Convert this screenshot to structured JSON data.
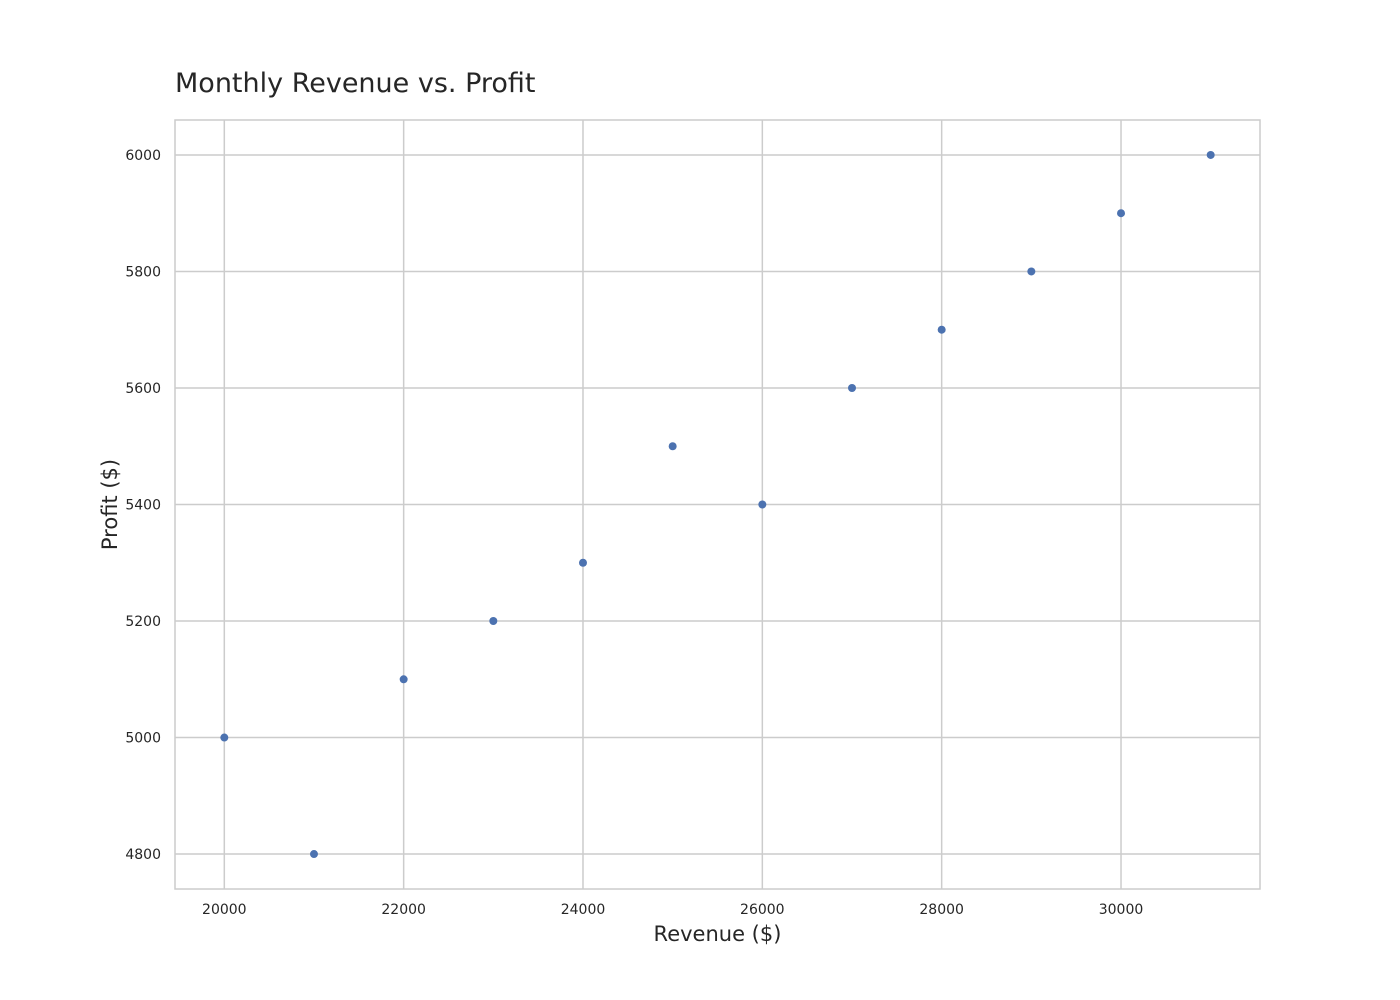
{
  "chart_data": {
    "type": "scatter",
    "title": "Monthly Revenue vs. Profit",
    "xlabel": "Revenue ($)",
    "ylabel": "Profit ($)",
    "xlim": [
      19450,
      31550
    ],
    "ylim": [
      4740,
      6060
    ],
    "xticks": [
      20000,
      22000,
      24000,
      26000,
      28000,
      30000
    ],
    "yticks": [
      4800,
      5000,
      5200,
      5400,
      5600,
      5800,
      6000
    ],
    "grid": true,
    "series": [
      {
        "color": "#4c72b0",
        "points": [
          {
            "x": 20000,
            "y": 5000
          },
          {
            "x": 21000,
            "y": 4800
          },
          {
            "x": 22000,
            "y": 5100
          },
          {
            "x": 23000,
            "y": 5200
          },
          {
            "x": 24000,
            "y": 5300
          },
          {
            "x": 25000,
            "y": 5500
          },
          {
            "x": 26000,
            "y": 5400
          },
          {
            "x": 27000,
            "y": 5600
          },
          {
            "x": 28000,
            "y": 5700
          },
          {
            "x": 29000,
            "y": 5800
          },
          {
            "x": 30000,
            "y": 5900
          },
          {
            "x": 31000,
            "y": 6000
          }
        ]
      }
    ]
  }
}
